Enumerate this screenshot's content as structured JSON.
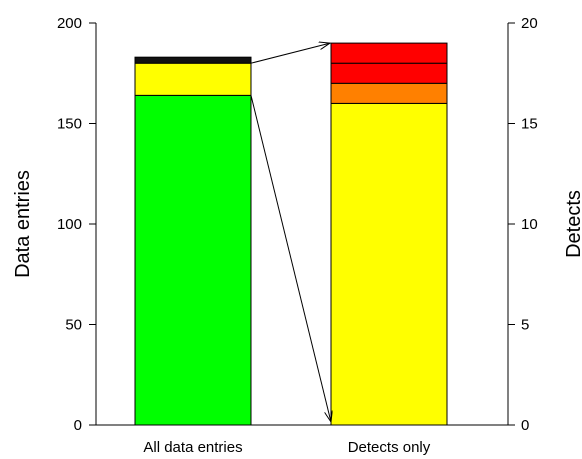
{
  "chart_data": {
    "type": "bar",
    "stacked": true,
    "dual_axis": true,
    "categories": [
      "All data entries",
      "Detects only"
    ],
    "left_axis": {
      "label": "Data entries",
      "ylim": [
        0,
        200
      ],
      "ticks": [
        0,
        50,
        100,
        150,
        200
      ],
      "tick_labels": [
        "0",
        "50",
        "100",
        "150",
        "200"
      ]
    },
    "right_axis": {
      "label": "Detects",
      "ylim": [
        0,
        20
      ],
      "ticks": [
        0,
        5,
        10,
        15,
        20
      ],
      "tick_labels": [
        "0",
        "5",
        "10",
        "15",
        "20"
      ]
    },
    "bars": [
      {
        "category": "All data entries",
        "axis": "left",
        "segments": [
          {
            "value": 164,
            "color": "#00ff00"
          },
          {
            "value": 16,
            "color": "#ffff00"
          },
          {
            "value": 3,
            "color": "#111111"
          }
        ]
      },
      {
        "category": "Detects only",
        "axis": "right",
        "segments": [
          {
            "value": 16,
            "color": "#ffff00"
          },
          {
            "value": 1,
            "color": "#ff8000"
          },
          {
            "value": 1,
            "color": "#ff0000"
          },
          {
            "value": 1,
            "color": "#ff0000"
          }
        ]
      }
    ],
    "arrows": [
      {
        "from": "top of yellow segment, All data entries",
        "to": "top of Detects only"
      },
      {
        "from": "top of green segment, All data entries",
        "to": "bottom of Detects only"
      }
    ],
    "grid": false,
    "legend": "none"
  }
}
